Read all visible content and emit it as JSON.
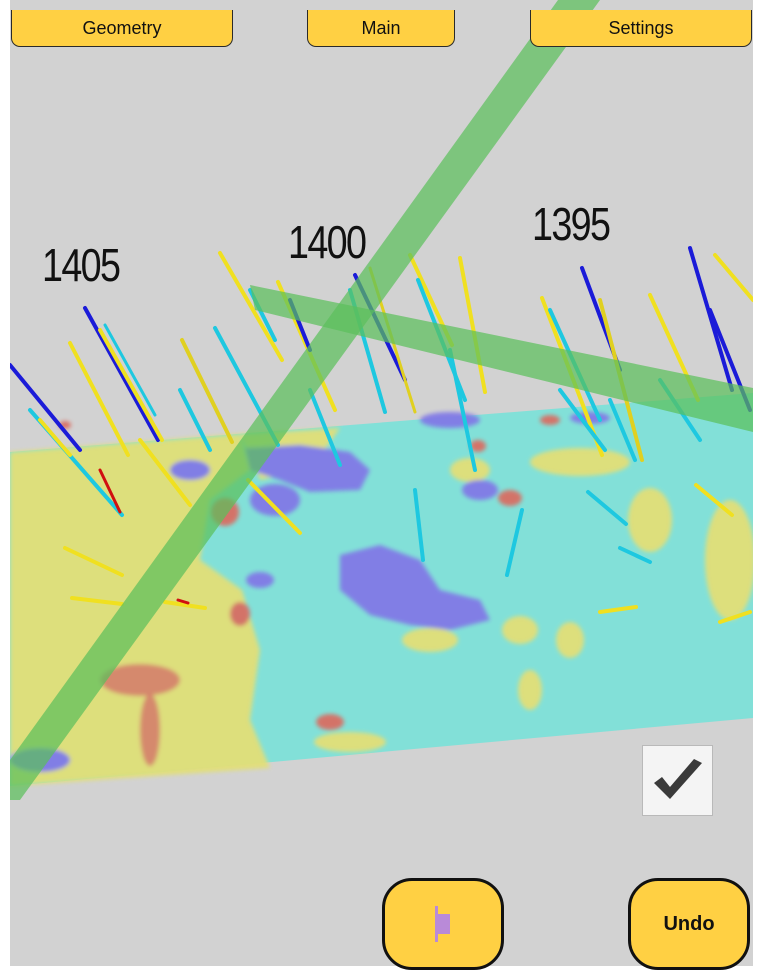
{
  "toolbar": {
    "tabs": [
      {
        "label": "Geometry"
      },
      {
        "label": "Main"
      },
      {
        "label": "Settings"
      }
    ]
  },
  "scene": {
    "section_labels": [
      "1405",
      "1400",
      "1395"
    ],
    "colors": {
      "background": "#d2d2d2",
      "section_cyan": "#7fe0d8",
      "section_yellow": "#e2df78",
      "section_purple": "#8179e6",
      "section_red": "#d86e64",
      "plane_green": "#5cbf5c",
      "button_yellow": "#ffd043"
    }
  },
  "controls": {
    "confirm_icon": "checkmark-icon",
    "tool_icon": "split-marker-icon",
    "undo_label": "Undo"
  }
}
